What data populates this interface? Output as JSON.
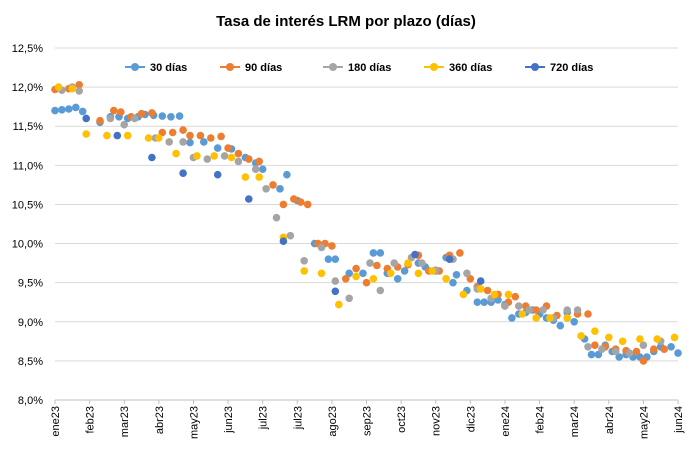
{
  "chart_data": {
    "type": "scatter",
    "title": "Tasa de interés LRM por plazo (días)",
    "ylim": [
      8.0,
      12.5
    ],
    "ytick_values": [
      8.0,
      8.5,
      9.0,
      9.5,
      10.0,
      10.5,
      11.0,
      11.5,
      12.0,
      12.5
    ],
    "ytick_labels": [
      "8,0%",
      "8,5%",
      "9,0%",
      "9,5%",
      "10,0%",
      "10,5%",
      "11,0%",
      "11,5%",
      "12,0%",
      "12,5%"
    ],
    "xtick_labels": [
      "ene23",
      "feb23",
      "mar23",
      "abr23",
      "may23",
      "jun23",
      "jul23",
      "jul23",
      "ago23",
      "sep23",
      "oct23",
      "nov23",
      "dic23",
      "ene24",
      "feb24",
      "mar24",
      "abr24",
      "may24",
      "jun24"
    ],
    "x_range": [
      0,
      18
    ],
    "legend_position": "top",
    "grid": true,
    "series": [
      {
        "name": "30 días",
        "color": "#5B9BD5",
        "points": [
          [
            0.0,
            11.7
          ],
          [
            0.2,
            11.71
          ],
          [
            0.4,
            11.72
          ],
          [
            0.6,
            11.74
          ],
          [
            0.8,
            11.69
          ],
          [
            1.3,
            11.55
          ],
          [
            1.6,
            11.62
          ],
          [
            1.85,
            11.62
          ],
          [
            2.1,
            11.6
          ],
          [
            2.4,
            11.62
          ],
          [
            2.6,
            11.65
          ],
          [
            2.85,
            11.64
          ],
          [
            3.1,
            11.63
          ],
          [
            3.35,
            11.62
          ],
          [
            3.6,
            11.63
          ],
          [
            3.9,
            11.29
          ],
          [
            4.3,
            11.3
          ],
          [
            4.7,
            11.22
          ],
          [
            5.1,
            11.21
          ],
          [
            5.5,
            11.1
          ],
          [
            5.8,
            11.03
          ],
          [
            6.0,
            10.95
          ],
          [
            6.5,
            10.7
          ],
          [
            6.7,
            10.88
          ],
          [
            7.0,
            10.55
          ],
          [
            7.5,
            10.0
          ],
          [
            7.9,
            9.8
          ],
          [
            8.1,
            9.8
          ],
          [
            8.5,
            9.62
          ],
          [
            8.9,
            9.62
          ],
          [
            9.2,
            9.88
          ],
          [
            9.4,
            9.88
          ],
          [
            9.6,
            9.62
          ],
          [
            9.9,
            9.55
          ],
          [
            10.1,
            9.65
          ],
          [
            10.5,
            9.75
          ],
          [
            10.7,
            9.7
          ],
          [
            11.0,
            9.65
          ],
          [
            11.3,
            9.82
          ],
          [
            11.5,
            9.5
          ],
          [
            11.6,
            9.6
          ],
          [
            11.9,
            9.4
          ],
          [
            12.2,
            9.25
          ],
          [
            12.4,
            9.25
          ],
          [
            12.6,
            9.25
          ],
          [
            12.8,
            9.28
          ],
          [
            13.0,
            9.22
          ],
          [
            13.2,
            9.05
          ],
          [
            13.4,
            9.1
          ],
          [
            13.6,
            9.12
          ],
          [
            13.8,
            9.15
          ],
          [
            14.0,
            9.1
          ],
          [
            14.2,
            9.05
          ],
          [
            14.4,
            9.02
          ],
          [
            14.6,
            8.95
          ],
          [
            14.8,
            9.12
          ],
          [
            15.0,
            9.0
          ],
          [
            15.3,
            8.78
          ],
          [
            15.5,
            8.58
          ],
          [
            15.7,
            8.58
          ],
          [
            15.9,
            8.7
          ],
          [
            16.1,
            8.62
          ],
          [
            16.3,
            8.55
          ],
          [
            16.5,
            8.58
          ],
          [
            16.7,
            8.55
          ],
          [
            16.9,
            8.55
          ],
          [
            17.1,
            8.55
          ],
          [
            17.3,
            8.62
          ],
          [
            17.5,
            8.68
          ],
          [
            17.8,
            8.68
          ],
          [
            18.0,
            8.6
          ]
        ]
      },
      {
        "name": "90 días",
        "color": "#ED7D31",
        "points": [
          [
            0.0,
            11.97
          ],
          [
            0.4,
            11.98
          ],
          [
            0.7,
            12.03
          ],
          [
            1.3,
            11.57
          ],
          [
            1.7,
            11.7
          ],
          [
            1.9,
            11.68
          ],
          [
            2.2,
            11.62
          ],
          [
            2.5,
            11.66
          ],
          [
            2.8,
            11.67
          ],
          [
            3.1,
            11.42
          ],
          [
            3.4,
            11.42
          ],
          [
            3.7,
            11.45
          ],
          [
            3.9,
            11.38
          ],
          [
            4.2,
            11.38
          ],
          [
            4.5,
            11.35
          ],
          [
            4.8,
            11.37
          ],
          [
            5.0,
            11.22
          ],
          [
            5.3,
            11.15
          ],
          [
            5.6,
            11.08
          ],
          [
            5.9,
            11.05
          ],
          [
            6.3,
            10.75
          ],
          [
            6.6,
            10.5
          ],
          [
            6.9,
            10.57
          ],
          [
            7.1,
            10.53
          ],
          [
            7.3,
            10.5
          ],
          [
            7.6,
            10.0
          ],
          [
            7.8,
            10.0
          ],
          [
            8.0,
            9.97
          ],
          [
            8.4,
            9.55
          ],
          [
            8.7,
            9.68
          ],
          [
            9.0,
            9.5
          ],
          [
            9.3,
            9.72
          ],
          [
            9.6,
            9.68
          ],
          [
            9.9,
            9.7
          ],
          [
            10.2,
            9.73
          ],
          [
            10.5,
            9.85
          ],
          [
            10.8,
            9.65
          ],
          [
            11.1,
            9.65
          ],
          [
            11.4,
            9.85
          ],
          [
            11.7,
            9.88
          ],
          [
            12.0,
            9.55
          ],
          [
            12.2,
            9.45
          ],
          [
            12.5,
            9.4
          ],
          [
            12.8,
            9.35
          ],
          [
            13.1,
            9.25
          ],
          [
            13.3,
            9.32
          ],
          [
            13.6,
            9.2
          ],
          [
            13.9,
            9.15
          ],
          [
            14.2,
            9.2
          ],
          [
            14.5,
            9.08
          ],
          [
            14.8,
            9.05
          ],
          [
            15.1,
            9.1
          ],
          [
            15.4,
            9.1
          ],
          [
            15.6,
            8.7
          ],
          [
            15.9,
            8.68
          ],
          [
            16.2,
            8.65
          ],
          [
            16.5,
            8.63
          ],
          [
            16.8,
            8.62
          ],
          [
            17.0,
            8.5
          ],
          [
            17.3,
            8.65
          ],
          [
            17.6,
            8.65
          ]
        ]
      },
      {
        "name": "180 días",
        "color": "#A5A5A5",
        "points": [
          [
            0.2,
            11.96
          ],
          [
            0.5,
            12.0
          ],
          [
            0.7,
            11.95
          ],
          [
            1.6,
            11.6
          ],
          [
            2.0,
            11.52
          ],
          [
            2.3,
            11.6
          ],
          [
            2.9,
            11.35
          ],
          [
            3.3,
            11.3
          ],
          [
            3.7,
            11.3
          ],
          [
            4.0,
            11.1
          ],
          [
            4.4,
            11.08
          ],
          [
            4.9,
            11.12
          ],
          [
            5.3,
            11.05
          ],
          [
            5.8,
            10.95
          ],
          [
            6.1,
            10.7
          ],
          [
            6.4,
            10.33
          ],
          [
            6.8,
            10.1
          ],
          [
            7.2,
            9.78
          ],
          [
            7.7,
            9.95
          ],
          [
            8.1,
            9.52
          ],
          [
            8.5,
            9.3
          ],
          [
            9.1,
            9.75
          ],
          [
            9.4,
            9.4
          ],
          [
            9.8,
            9.75
          ],
          [
            10.3,
            9.82
          ],
          [
            10.6,
            9.75
          ],
          [
            11.0,
            9.66
          ],
          [
            11.5,
            9.8
          ],
          [
            11.9,
            9.62
          ],
          [
            12.2,
            9.42
          ],
          [
            12.6,
            9.3
          ],
          [
            13.0,
            9.2
          ],
          [
            13.4,
            9.2
          ],
          [
            13.7,
            9.15
          ],
          [
            14.1,
            9.15
          ],
          [
            14.4,
            9.05
          ],
          [
            14.8,
            9.15
          ],
          [
            15.1,
            9.15
          ],
          [
            15.4,
            8.68
          ],
          [
            15.8,
            8.65
          ],
          [
            16.2,
            8.62
          ],
          [
            16.6,
            8.6
          ],
          [
            17.0,
            8.7
          ],
          [
            17.5,
            8.75
          ]
        ]
      },
      {
        "name": "360 días",
        "color": "#FFC000",
        "points": [
          [
            0.1,
            12.0
          ],
          [
            0.5,
            11.98
          ],
          [
            0.9,
            11.4
          ],
          [
            1.5,
            11.38
          ],
          [
            2.1,
            11.38
          ],
          [
            2.7,
            11.35
          ],
          [
            3.0,
            11.35
          ],
          [
            3.5,
            11.15
          ],
          [
            4.1,
            11.12
          ],
          [
            4.6,
            11.12
          ],
          [
            5.1,
            11.1
          ],
          [
            5.5,
            10.85
          ],
          [
            5.9,
            10.85
          ],
          [
            6.6,
            10.08
          ],
          [
            7.2,
            9.65
          ],
          [
            7.7,
            9.62
          ],
          [
            8.2,
            9.22
          ],
          [
            8.7,
            9.58
          ],
          [
            9.2,
            9.55
          ],
          [
            9.7,
            9.62
          ],
          [
            10.2,
            9.75
          ],
          [
            10.5,
            9.62
          ],
          [
            10.9,
            9.65
          ],
          [
            11.3,
            9.55
          ],
          [
            11.8,
            9.35
          ],
          [
            12.3,
            9.42
          ],
          [
            12.7,
            9.35
          ],
          [
            13.1,
            9.35
          ],
          [
            13.5,
            9.1
          ],
          [
            13.9,
            9.05
          ],
          [
            14.3,
            9.05
          ],
          [
            14.8,
            9.05
          ],
          [
            15.2,
            8.82
          ],
          [
            15.6,
            8.88
          ],
          [
            16.0,
            8.8
          ],
          [
            16.4,
            8.75
          ],
          [
            16.9,
            8.78
          ],
          [
            17.4,
            8.78
          ],
          [
            17.9,
            8.8
          ]
        ]
      },
      {
        "name": "720 días",
        "color": "#4472C4",
        "points": [
          [
            0.9,
            11.6
          ],
          [
            1.8,
            11.38
          ],
          [
            2.8,
            11.1
          ],
          [
            3.7,
            10.9
          ],
          [
            4.7,
            10.88
          ],
          [
            5.6,
            10.57
          ],
          [
            6.6,
            10.03
          ],
          [
            8.1,
            9.39
          ],
          [
            10.4,
            9.86
          ],
          [
            11.4,
            9.8
          ],
          [
            12.3,
            9.52
          ]
        ]
      }
    ]
  }
}
